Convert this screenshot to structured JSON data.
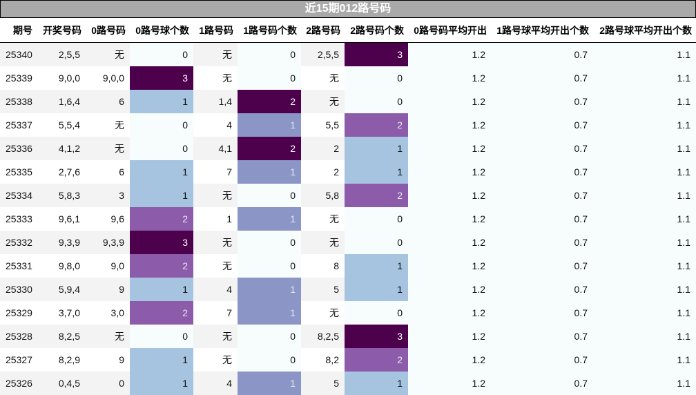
{
  "title": "近15期012路号码",
  "columns": [
    "期号",
    "开奖号码",
    "0路号码",
    "0路号球个数",
    "1路号码",
    "1路号码个数",
    "2路号码",
    "2路号码个数",
    "0路号码平均开出",
    "1路号球平均开出个数",
    "2路号球平均开出个数"
  ],
  "colors": {
    "title_bg": "#a9a9a9",
    "zero_bg": "#f7fcfd",
    "light_blue": "#a6c4df",
    "lavender": "#8c96c6",
    "purple": "#8c5ba9",
    "dark_purple": "#4d004b",
    "odd_row": "#f3f3f3",
    "even_row": "#ffffff"
  },
  "rows": [
    {
      "issue": "25340",
      "draw": "2,5,5",
      "r0": "无",
      "c0": "0",
      "r1": "无",
      "c1": "0",
      "r2": "2,5,5",
      "c2": "3",
      "avg0": "1.2",
      "avg1": "0.7",
      "avg2": "1.1"
    },
    {
      "issue": "25339",
      "draw": "9,0,0",
      "r0": "9,0,0",
      "c0": "3",
      "r1": "无",
      "c1": "0",
      "r2": "无",
      "c2": "0",
      "avg0": "1.2",
      "avg1": "0.7",
      "avg2": "1.1"
    },
    {
      "issue": "25338",
      "draw": "1,6,4",
      "r0": "6",
      "c0": "1",
      "r1": "1,4",
      "c1": "2",
      "r2": "无",
      "c2": "0",
      "avg0": "1.2",
      "avg1": "0.7",
      "avg2": "1.1"
    },
    {
      "issue": "25337",
      "draw": "5,5,4",
      "r0": "无",
      "c0": "0",
      "r1": "4",
      "c1": "1",
      "r2": "5,5",
      "c2": "2",
      "avg0": "1.2",
      "avg1": "0.7",
      "avg2": "1.1"
    },
    {
      "issue": "25336",
      "draw": "4,1,2",
      "r0": "无",
      "c0": "0",
      "r1": "4,1",
      "c1": "2",
      "r2": "2",
      "c2": "1",
      "avg0": "1.2",
      "avg1": "0.7",
      "avg2": "1.1"
    },
    {
      "issue": "25335",
      "draw": "2,7,6",
      "r0": "6",
      "c0": "1",
      "r1": "7",
      "c1": "1",
      "r2": "2",
      "c2": "1",
      "avg0": "1.2",
      "avg1": "0.7",
      "avg2": "1.1"
    },
    {
      "issue": "25334",
      "draw": "5,8,3",
      "r0": "3",
      "c0": "1",
      "r1": "无",
      "c1": "0",
      "r2": "5,8",
      "c2": "2",
      "avg0": "1.2",
      "avg1": "0.7",
      "avg2": "1.1"
    },
    {
      "issue": "25333",
      "draw": "9,6,1",
      "r0": "9,6",
      "c0": "2",
      "r1": "1",
      "c1": "1",
      "r2": "无",
      "c2": "0",
      "avg0": "1.2",
      "avg1": "0.7",
      "avg2": "1.1"
    },
    {
      "issue": "25332",
      "draw": "9,3,9",
      "r0": "9,3,9",
      "c0": "3",
      "r1": "无",
      "c1": "0",
      "r2": "无",
      "c2": "0",
      "avg0": "1.2",
      "avg1": "0.7",
      "avg2": "1.1"
    },
    {
      "issue": "25331",
      "draw": "9,8,0",
      "r0": "9,0",
      "c0": "2",
      "r1": "无",
      "c1": "0",
      "r2": "8",
      "c2": "1",
      "avg0": "1.2",
      "avg1": "0.7",
      "avg2": "1.1"
    },
    {
      "issue": "25330",
      "draw": "5,9,4",
      "r0": "9",
      "c0": "1",
      "r1": "4",
      "c1": "1",
      "r2": "5",
      "c2": "1",
      "avg0": "1.2",
      "avg1": "0.7",
      "avg2": "1.1"
    },
    {
      "issue": "25329",
      "draw": "3,7,0",
      "r0": "3,0",
      "c0": "2",
      "r1": "7",
      "c1": "1",
      "r2": "无",
      "c2": "0",
      "avg0": "1.2",
      "avg1": "0.7",
      "avg2": "1.1"
    },
    {
      "issue": "25328",
      "draw": "8,2,5",
      "r0": "无",
      "c0": "0",
      "r1": "无",
      "c1": "0",
      "r2": "8,2,5",
      "c2": "3",
      "avg0": "1.2",
      "avg1": "0.7",
      "avg2": "1.1"
    },
    {
      "issue": "25327",
      "draw": "8,2,9",
      "r0": "9",
      "c0": "1",
      "r1": "无",
      "c1": "0",
      "r2": "8,2",
      "c2": "2",
      "avg0": "1.2",
      "avg1": "0.7",
      "avg2": "1.1"
    },
    {
      "issue": "25326",
      "draw": "0,4,5",
      "r0": "0",
      "c0": "1",
      "r1": "4",
      "c1": "1",
      "r2": "5",
      "c2": "1",
      "avg0": "1.2",
      "avg1": "0.7",
      "avg2": "1.1"
    }
  ]
}
